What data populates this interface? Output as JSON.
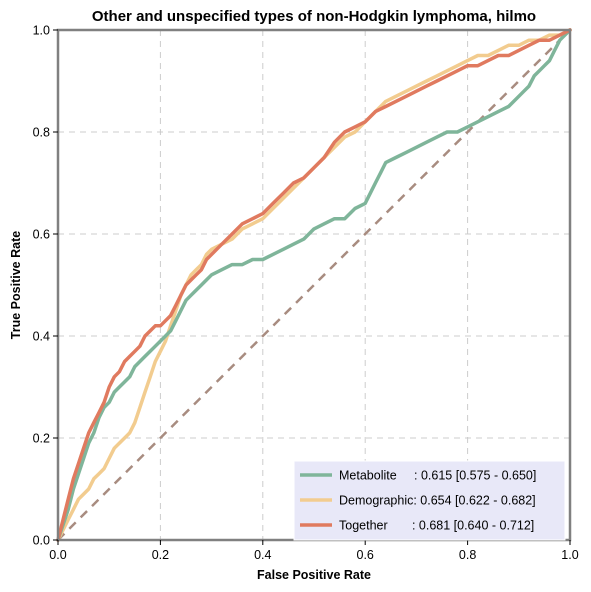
{
  "chart_data": {
    "type": "line",
    "title": "Other and unspecified types of non-Hodgkin lymphoma, hilmo",
    "xlabel": "False Positive Rate",
    "ylabel": "True Positive Rate",
    "xlim": [
      0,
      1
    ],
    "ylim": [
      0,
      1
    ],
    "xticks": [
      0.0,
      0.2,
      0.4,
      0.6,
      0.8,
      1.0
    ],
    "yticks": [
      0.0,
      0.2,
      0.4,
      0.6,
      0.8,
      1.0
    ],
    "xtick_labels": [
      "0.0",
      "0.2",
      "0.4",
      "0.6",
      "0.8",
      "1.0"
    ],
    "ytick_labels": [
      "0.0",
      "0.2",
      "0.4",
      "0.6",
      "0.8",
      "1.0"
    ],
    "grid": true,
    "legend_position": "bottom-right",
    "legend_background": "#e8e8f8",
    "series": [
      {
        "name": "Metabolite",
        "legend_label": "Metabolite     : 0.615 [0.575 - 0.650]",
        "color": "#7fb59a",
        "x": [
          0.0,
          0.01,
          0.02,
          0.03,
          0.04,
          0.05,
          0.06,
          0.07,
          0.08,
          0.09,
          0.1,
          0.11,
          0.12,
          0.13,
          0.14,
          0.15,
          0.16,
          0.17,
          0.18,
          0.19,
          0.2,
          0.21,
          0.22,
          0.23,
          0.24,
          0.25,
          0.26,
          0.27,
          0.28,
          0.29,
          0.3,
          0.32,
          0.34,
          0.36,
          0.38,
          0.4,
          0.42,
          0.44,
          0.46,
          0.48,
          0.5,
          0.52,
          0.54,
          0.56,
          0.58,
          0.6,
          0.61,
          0.62,
          0.63,
          0.64,
          0.66,
          0.68,
          0.7,
          0.72,
          0.74,
          0.76,
          0.78,
          0.8,
          0.82,
          0.84,
          0.86,
          0.88,
          0.9,
          0.91,
          0.92,
          0.93,
          0.94,
          0.95,
          0.96,
          0.97,
          0.98,
          1.0
        ],
        "y": [
          0.0,
          0.03,
          0.06,
          0.1,
          0.13,
          0.16,
          0.19,
          0.21,
          0.24,
          0.26,
          0.27,
          0.29,
          0.3,
          0.31,
          0.32,
          0.34,
          0.35,
          0.36,
          0.37,
          0.38,
          0.39,
          0.4,
          0.41,
          0.43,
          0.45,
          0.47,
          0.48,
          0.49,
          0.5,
          0.51,
          0.52,
          0.53,
          0.54,
          0.54,
          0.55,
          0.55,
          0.56,
          0.57,
          0.58,
          0.59,
          0.61,
          0.62,
          0.63,
          0.63,
          0.65,
          0.66,
          0.68,
          0.7,
          0.72,
          0.74,
          0.75,
          0.76,
          0.77,
          0.78,
          0.79,
          0.8,
          0.8,
          0.81,
          0.82,
          0.83,
          0.84,
          0.85,
          0.87,
          0.88,
          0.89,
          0.91,
          0.92,
          0.93,
          0.94,
          0.96,
          0.98,
          1.0
        ]
      },
      {
        "name": "Demographic",
        "legend_label": "Demographic: 0.654 [0.622 - 0.682]",
        "color": "#f2cc8f",
        "x": [
          0.0,
          0.01,
          0.02,
          0.03,
          0.04,
          0.05,
          0.06,
          0.07,
          0.08,
          0.09,
          0.1,
          0.11,
          0.12,
          0.13,
          0.14,
          0.15,
          0.16,
          0.17,
          0.18,
          0.19,
          0.2,
          0.21,
          0.22,
          0.23,
          0.24,
          0.25,
          0.26,
          0.27,
          0.28,
          0.29,
          0.3,
          0.32,
          0.34,
          0.36,
          0.38,
          0.4,
          0.42,
          0.44,
          0.46,
          0.48,
          0.5,
          0.52,
          0.54,
          0.56,
          0.58,
          0.6,
          0.62,
          0.64,
          0.66,
          0.68,
          0.7,
          0.72,
          0.74,
          0.76,
          0.78,
          0.8,
          0.82,
          0.84,
          0.86,
          0.88,
          0.9,
          0.92,
          0.94,
          0.96,
          0.98,
          1.0
        ],
        "y": [
          0.0,
          0.02,
          0.04,
          0.06,
          0.08,
          0.09,
          0.1,
          0.12,
          0.13,
          0.14,
          0.16,
          0.18,
          0.19,
          0.2,
          0.21,
          0.23,
          0.26,
          0.29,
          0.32,
          0.35,
          0.37,
          0.39,
          0.42,
          0.45,
          0.48,
          0.5,
          0.52,
          0.53,
          0.54,
          0.56,
          0.57,
          0.58,
          0.59,
          0.61,
          0.62,
          0.63,
          0.65,
          0.67,
          0.69,
          0.71,
          0.73,
          0.75,
          0.77,
          0.79,
          0.8,
          0.82,
          0.84,
          0.86,
          0.87,
          0.88,
          0.89,
          0.9,
          0.91,
          0.92,
          0.93,
          0.94,
          0.95,
          0.95,
          0.96,
          0.97,
          0.97,
          0.98,
          0.98,
          0.99,
          0.99,
          1.0
        ]
      },
      {
        "name": "Together",
        "legend_label": "Together       : 0.681 [0.640 - 0.712]",
        "color": "#e07a5f",
        "x": [
          0.0,
          0.01,
          0.02,
          0.03,
          0.04,
          0.05,
          0.06,
          0.07,
          0.08,
          0.09,
          0.1,
          0.11,
          0.12,
          0.13,
          0.14,
          0.15,
          0.16,
          0.17,
          0.18,
          0.19,
          0.2,
          0.21,
          0.22,
          0.23,
          0.24,
          0.25,
          0.26,
          0.27,
          0.28,
          0.29,
          0.3,
          0.32,
          0.34,
          0.36,
          0.38,
          0.4,
          0.42,
          0.44,
          0.46,
          0.48,
          0.5,
          0.52,
          0.54,
          0.56,
          0.58,
          0.6,
          0.62,
          0.64,
          0.66,
          0.68,
          0.7,
          0.72,
          0.74,
          0.76,
          0.78,
          0.8,
          0.82,
          0.84,
          0.86,
          0.88,
          0.9,
          0.92,
          0.94,
          0.96,
          0.98,
          1.0
        ],
        "y": [
          0.0,
          0.04,
          0.08,
          0.12,
          0.15,
          0.18,
          0.21,
          0.23,
          0.25,
          0.27,
          0.3,
          0.32,
          0.33,
          0.35,
          0.36,
          0.37,
          0.38,
          0.4,
          0.41,
          0.42,
          0.42,
          0.43,
          0.44,
          0.46,
          0.48,
          0.5,
          0.51,
          0.52,
          0.53,
          0.55,
          0.56,
          0.58,
          0.6,
          0.62,
          0.63,
          0.64,
          0.66,
          0.68,
          0.7,
          0.71,
          0.73,
          0.75,
          0.78,
          0.8,
          0.81,
          0.82,
          0.84,
          0.85,
          0.86,
          0.87,
          0.88,
          0.89,
          0.9,
          0.91,
          0.92,
          0.93,
          0.93,
          0.94,
          0.95,
          0.95,
          0.96,
          0.97,
          0.98,
          0.98,
          0.99,
          1.0
        ]
      },
      {
        "name": "",
        "color": "#a88c80",
        "dashed": true,
        "x": [
          0.0,
          1.0
        ],
        "y": [
          0.0,
          1.0
        ]
      }
    ]
  }
}
